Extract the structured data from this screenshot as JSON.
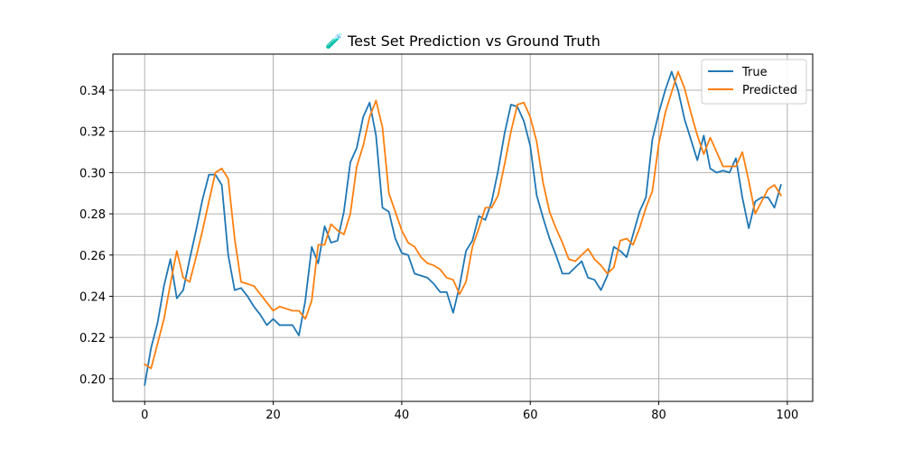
{
  "chart_data": {
    "type": "line",
    "title": "🧪 Test Set Prediction vs Ground Truth",
    "xlabel": "",
    "ylabel": "",
    "xlim": [
      -4.95,
      103.95
    ],
    "ylim": [
      0.189,
      0.3575
    ],
    "xticks": [
      0,
      20,
      40,
      60,
      80,
      100
    ],
    "yticks": [
      0.2,
      0.22,
      0.24,
      0.26,
      0.28,
      0.3,
      0.32,
      0.34
    ],
    "xtick_labels": [
      "0",
      "20",
      "40",
      "60",
      "80",
      "100"
    ],
    "ytick_labels": [
      "0.20",
      "0.22",
      "0.24",
      "0.26",
      "0.28",
      "0.30",
      "0.32",
      "0.34"
    ],
    "grid": true,
    "legend_position": "upper right",
    "x": [
      0,
      1,
      2,
      3,
      4,
      5,
      6,
      7,
      8,
      9,
      10,
      11,
      12,
      13,
      14,
      15,
      16,
      17,
      18,
      19,
      20,
      21,
      22,
      23,
      24,
      25,
      26,
      27,
      28,
      29,
      30,
      31,
      32,
      33,
      34,
      35,
      36,
      37,
      38,
      39,
      40,
      41,
      42,
      43,
      44,
      45,
      46,
      47,
      48,
      49,
      50,
      51,
      52,
      53,
      54,
      55,
      56,
      57,
      58,
      59,
      60,
      61,
      62,
      63,
      64,
      65,
      66,
      67,
      68,
      69,
      70,
      71,
      72,
      73,
      74,
      75,
      76,
      77,
      78,
      79,
      80,
      81,
      82,
      83,
      84,
      85,
      86,
      87,
      88,
      89,
      90,
      91,
      92,
      93,
      94,
      95,
      96,
      97,
      98,
      99
    ],
    "series": [
      {
        "name": "True",
        "color": "#1f77b4",
        "values": [
          0.197,
          0.215,
          0.227,
          0.245,
          0.258,
          0.239,
          0.243,
          0.258,
          0.272,
          0.287,
          0.299,
          0.299,
          0.294,
          0.26,
          0.243,
          0.244,
          0.24,
          0.235,
          0.231,
          0.226,
          0.229,
          0.226,
          0.226,
          0.226,
          0.221,
          0.238,
          0.264,
          0.256,
          0.274,
          0.266,
          0.267,
          0.281,
          0.305,
          0.312,
          0.327,
          0.334,
          0.318,
          0.283,
          0.281,
          0.268,
          0.261,
          0.26,
          0.251,
          0.25,
          0.249,
          0.246,
          0.242,
          0.242,
          0.232,
          0.245,
          0.262,
          0.267,
          0.279,
          0.277,
          0.286,
          0.301,
          0.319,
          0.333,
          0.332,
          0.325,
          0.313,
          0.289,
          0.278,
          0.268,
          0.26,
          0.251,
          0.251,
          0.254,
          0.257,
          0.249,
          0.248,
          0.243,
          0.25,
          0.264,
          0.262,
          0.259,
          0.27,
          0.281,
          0.288,
          0.316,
          0.329,
          0.34,
          0.349,
          0.34,
          0.326,
          0.316,
          0.306,
          0.318,
          0.302,
          0.3,
          0.301,
          0.3,
          0.307,
          0.288,
          0.273,
          0.286,
          0.288,
          0.288,
          0.283,
          0.294
        ]
      },
      {
        "name": "Predicted",
        "color": "#ff7f0e",
        "values": [
          0.207,
          0.205,
          0.217,
          0.229,
          0.246,
          0.262,
          0.249,
          0.247,
          0.259,
          0.272,
          0.286,
          0.3,
          0.302,
          0.297,
          0.268,
          0.247,
          0.246,
          0.245,
          0.241,
          0.237,
          0.233,
          0.235,
          0.234,
          0.233,
          0.233,
          0.229,
          0.238,
          0.265,
          0.265,
          0.275,
          0.272,
          0.27,
          0.28,
          0.303,
          0.313,
          0.327,
          0.335,
          0.322,
          0.29,
          0.281,
          0.272,
          0.266,
          0.264,
          0.259,
          0.256,
          0.255,
          0.253,
          0.249,
          0.248,
          0.241,
          0.247,
          0.264,
          0.273,
          0.283,
          0.283,
          0.289,
          0.304,
          0.32,
          0.333,
          0.334,
          0.327,
          0.315,
          0.295,
          0.281,
          0.273,
          0.266,
          0.258,
          0.257,
          0.26,
          0.263,
          0.258,
          0.255,
          0.251,
          0.254,
          0.267,
          0.268,
          0.265,
          0.273,
          0.283,
          0.291,
          0.314,
          0.329,
          0.339,
          0.349,
          0.341,
          0.329,
          0.318,
          0.309,
          0.317,
          0.31,
          0.303,
          0.303,
          0.303,
          0.31,
          0.296,
          0.28,
          0.286,
          0.292,
          0.294,
          0.289
        ]
      }
    ]
  }
}
